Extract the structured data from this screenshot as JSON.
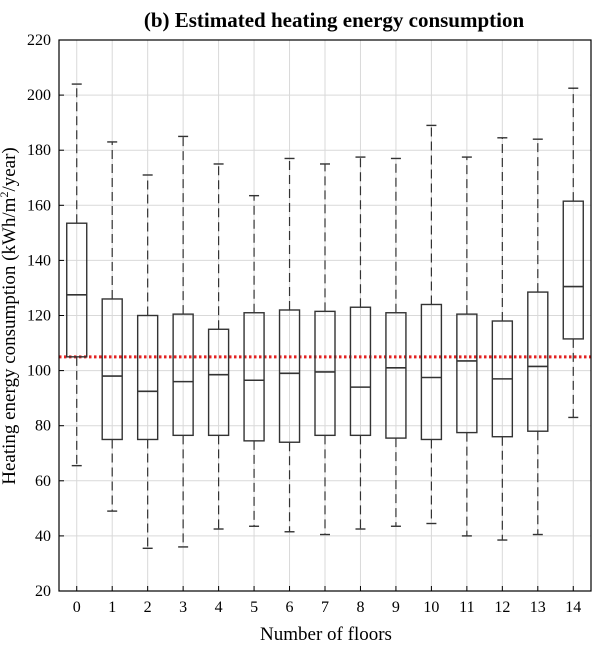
{
  "chart_data": {
    "type": "box",
    "title": "(b) Estimated heating energy consumption",
    "xlabel": "Number of floors",
    "ylabel_main": "Heating energy consumption (kWh/m",
    "ylabel_sup": "2",
    "ylabel_end": "/year)",
    "ylim": [
      20,
      220
    ],
    "yticks": [
      20,
      40,
      60,
      80,
      100,
      120,
      140,
      160,
      180,
      200,
      220
    ],
    "categories": [
      "0",
      "1",
      "2",
      "3",
      "4",
      "5",
      "6",
      "7",
      "8",
      "9",
      "10",
      "11",
      "12",
      "13",
      "14"
    ],
    "boxes": [
      {
        "min": 65.5,
        "q1": 105,
        "median": 127.5,
        "q3": 153.5,
        "max": 204
      },
      {
        "min": 49,
        "q1": 75,
        "median": 98,
        "q3": 126,
        "max": 183
      },
      {
        "min": 35.5,
        "q1": 75,
        "median": 92.5,
        "q3": 120,
        "max": 171
      },
      {
        "min": 36,
        "q1": 76.5,
        "median": 96,
        "q3": 120.5,
        "max": 185
      },
      {
        "min": 42.5,
        "q1": 76.5,
        "median": 98.5,
        "q3": 115,
        "max": 175
      },
      {
        "min": 43.5,
        "q1": 74.5,
        "median": 96.5,
        "q3": 121,
        "max": 163.5
      },
      {
        "min": 41.5,
        "q1": 74,
        "median": 99,
        "q3": 122,
        "max": 177
      },
      {
        "min": 40.5,
        "q1": 76.5,
        "median": 99.5,
        "q3": 121.5,
        "max": 175
      },
      {
        "min": 42.5,
        "q1": 76.5,
        "median": 94,
        "q3": 123,
        "max": 177.5
      },
      {
        "min": 43.5,
        "q1": 75.5,
        "median": 101,
        "q3": 121,
        "max": 177
      },
      {
        "min": 44.5,
        "q1": 75,
        "median": 97.5,
        "q3": 124,
        "max": 189
      },
      {
        "min": 40,
        "q1": 77.5,
        "median": 103.5,
        "q3": 120.5,
        "max": 177.5
      },
      {
        "min": 38.5,
        "q1": 76,
        "median": 97,
        "q3": 118,
        "max": 184.5
      },
      {
        "min": 40.5,
        "q1": 78,
        "median": 101.5,
        "q3": 128.5,
        "max": 184
      },
      {
        "min": 83,
        "q1": 111.5,
        "median": 130.5,
        "q3": 161.5,
        "max": 202.5
      }
    ],
    "reference_line": {
      "y": 105,
      "color": "#e32222",
      "style": "dotted"
    },
    "grid": true,
    "colors": {
      "box": "#333333",
      "median": "#333333",
      "whisker": "#333333",
      "grid": "#d9d9d9",
      "axis": "#000000"
    }
  }
}
